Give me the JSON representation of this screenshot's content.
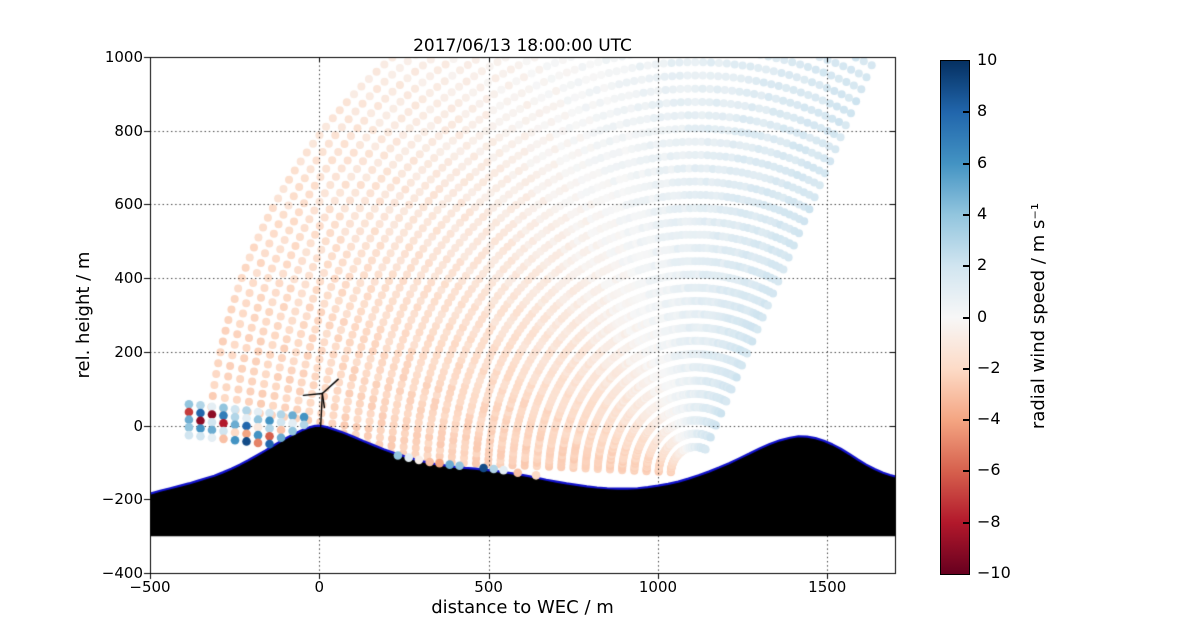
{
  "figure": {
    "title": "2017/06/13 18:00:00 UTC"
  },
  "axes": {
    "x": {
      "label": "distance to WEC / m",
      "min": -500,
      "max": 1700,
      "ticks": [
        -500,
        0,
        500,
        1000,
        1500
      ]
    },
    "y": {
      "label": "rel. height / m",
      "min": -400,
      "max": 1000,
      "ticks": [
        1000,
        800,
        600,
        400,
        200,
        0,
        -200,
        -400
      ]
    }
  },
  "colorbar": {
    "label": "radial wind speed / m s⁻¹",
    "min": -10,
    "max": 10,
    "ticks": [
      10,
      8,
      6,
      4,
      2,
      0,
      -2,
      -4,
      -6,
      -8,
      -10
    ],
    "stops": [
      [
        -10,
        "#67001f"
      ],
      [
        -8,
        "#b2182b"
      ],
      [
        -6,
        "#d6604d"
      ],
      [
        -4,
        "#f4a582"
      ],
      [
        -2,
        "#fddbc7"
      ],
      [
        0,
        "#f7f7f7"
      ],
      [
        2,
        "#d1e5f0"
      ],
      [
        4,
        "#92c5de"
      ],
      [
        6,
        "#4393c3"
      ],
      [
        8,
        "#2166ac"
      ],
      [
        10,
        "#053061"
      ]
    ]
  },
  "colors": {
    "background": "#ffffff",
    "terrain_fill": "#000000",
    "terrain_outline": "#1212cc",
    "grid": "#000000",
    "spine": "#000000"
  },
  "chart_data": {
    "type": "scatter",
    "title": "2017/06/13 18:00:00 UTC",
    "xlabel": "distance to WEC / m",
    "ylabel": "rel. height / m",
    "xlim": [
      -500,
      1700
    ],
    "ylim": [
      -400,
      1000
    ],
    "grid": "dotted",
    "legend": "colorbar-right",
    "colormap": "RdBu",
    "clim": [
      -10,
      10
    ],
    "scan_fan": {
      "comment": "lidar RHI scan fan of faint arcs; center = lidar position in data coords",
      "center": [
        1110,
        -130
      ],
      "angle_min_deg": 64,
      "angle_max_deg": 177.6,
      "angle_step_deg": 1.2,
      "range_min_m": 72,
      "range_max_m": 1460,
      "range_step_m": 36,
      "value_amplitude_ms": 2.6,
      "value_phase_deg": 20,
      "value_noise_ms": 0.6,
      "dot_radius_px": 4
    },
    "terrain": {
      "base_height_m": -300,
      "profile": [
        [
          -500,
          -185
        ],
        [
          -470,
          -177
        ],
        [
          -440,
          -170
        ],
        [
          -410,
          -163
        ],
        [
          -385,
          -157
        ],
        [
          -360,
          -150
        ],
        [
          -335,
          -143
        ],
        [
          -310,
          -136
        ],
        [
          -285,
          -127
        ],
        [
          -260,
          -117
        ],
        [
          -235,
          -106
        ],
        [
          -210,
          -94
        ],
        [
          -185,
          -81
        ],
        [
          -160,
          -68
        ],
        [
          -135,
          -54
        ],
        [
          -110,
          -40
        ],
        [
          -90,
          -30
        ],
        [
          -70,
          -21
        ],
        [
          -50,
          -12
        ],
        [
          -30,
          -5
        ],
        [
          -12,
          -1
        ],
        [
          0,
          0
        ],
        [
          12,
          -2
        ],
        [
          25,
          -5
        ],
        [
          45,
          -11
        ],
        [
          70,
          -19
        ],
        [
          100,
          -30
        ],
        [
          130,
          -42
        ],
        [
          160,
          -53
        ],
        [
          190,
          -64
        ],
        [
          220,
          -74
        ],
        [
          250,
          -83
        ],
        [
          280,
          -91
        ],
        [
          310,
          -98
        ],
        [
          340,
          -104
        ],
        [
          370,
          -108
        ],
        [
          400,
          -112
        ],
        [
          430,
          -115
        ],
        [
          460,
          -117
        ],
        [
          490,
          -120
        ],
        [
          520,
          -123
        ],
        [
          550,
          -127
        ],
        [
          580,
          -131
        ],
        [
          610,
          -136
        ],
        [
          640,
          -141
        ],
        [
          670,
          -147
        ],
        [
          700,
          -152
        ],
        [
          730,
          -157
        ],
        [
          760,
          -161
        ],
        [
          790,
          -165
        ],
        [
          820,
          -168
        ],
        [
          850,
          -170
        ],
        [
          880,
          -171
        ],
        [
          910,
          -171
        ],
        [
          940,
          -170
        ],
        [
          970,
          -167
        ],
        [
          1000,
          -163
        ],
        [
          1030,
          -158
        ],
        [
          1060,
          -152
        ],
        [
          1090,
          -144
        ],
        [
          1120,
          -135
        ],
        [
          1150,
          -125
        ],
        [
          1180,
          -114
        ],
        [
          1210,
          -102
        ],
        [
          1240,
          -89
        ],
        [
          1270,
          -76
        ],
        [
          1300,
          -62
        ],
        [
          1330,
          -50
        ],
        [
          1360,
          -40
        ],
        [
          1390,
          -33
        ],
        [
          1415,
          -29
        ],
        [
          1440,
          -30
        ],
        [
          1465,
          -34
        ],
        [
          1490,
          -41
        ],
        [
          1515,
          -51
        ],
        [
          1540,
          -63
        ],
        [
          1565,
          -77
        ],
        [
          1590,
          -92
        ],
        [
          1615,
          -106
        ],
        [
          1640,
          -118
        ],
        [
          1665,
          -128
        ],
        [
          1685,
          -134
        ],
        [
          1700,
          -138
        ]
      ]
    },
    "turbine": {
      "tower": [
        [
          4,
          -2
        ],
        [
          9,
          87
        ]
      ],
      "blades": [
        [
          [
            9,
            87
          ],
          [
            56,
            126
          ]
        ],
        [
          [
            9,
            87
          ],
          [
            -47,
            82
          ]
        ],
        [
          [
            9,
            87
          ],
          [
            15,
            49
          ]
        ]
      ]
    },
    "points": [
      [
        -385,
        58,
        4
      ],
      [
        -385,
        37,
        -7
      ],
      [
        -385,
        16,
        5
      ],
      [
        -385,
        -5,
        4
      ],
      [
        -385,
        -26,
        2
      ],
      [
        -351,
        55,
        3
      ],
      [
        -351,
        34,
        8
      ],
      [
        -351,
        13,
        -9
      ],
      [
        -351,
        -8,
        6
      ],
      [
        -351,
        -29,
        2
      ],
      [
        -317,
        51,
        1
      ],
      [
        -317,
        30,
        -9
      ],
      [
        -317,
        9,
        2
      ],
      [
        -317,
        -12,
        5
      ],
      [
        -317,
        -33,
        1
      ],
      [
        -283,
        48,
        4
      ],
      [
        -283,
        27,
        7
      ],
      [
        -283,
        6,
        -8
      ],
      [
        -283,
        -15,
        2
      ],
      [
        -283,
        -36,
        -3
      ],
      [
        -249,
        44,
        2
      ],
      [
        -249,
        23,
        3
      ],
      [
        -249,
        2,
        5
      ],
      [
        -249,
        -19,
        -2
      ],
      [
        -249,
        -40,
        6
      ],
      [
        -215,
        41,
        3
      ],
      [
        -215,
        20,
        1
      ],
      [
        -215,
        -1,
        8
      ],
      [
        -215,
        -22,
        -4
      ],
      [
        -215,
        -43,
        9
      ],
      [
        -181,
        37,
        1
      ],
      [
        -181,
        16,
        4
      ],
      [
        -181,
        -5,
        -1
      ],
      [
        -181,
        -26,
        6
      ],
      [
        -181,
        -47,
        -5
      ],
      [
        -147,
        34,
        2
      ],
      [
        -147,
        13,
        6
      ],
      [
        -147,
        -8,
        3
      ],
      [
        -147,
        -29,
        -6
      ],
      [
        -147,
        -50,
        8
      ],
      [
        -113,
        30,
        3
      ],
      [
        -113,
        9,
        2
      ],
      [
        -113,
        -12,
        -3
      ],
      [
        -113,
        -33,
        5
      ],
      [
        -79,
        27,
        5
      ],
      [
        -79,
        6,
        1
      ],
      [
        -79,
        -15,
        4
      ],
      [
        -45,
        23,
        6
      ],
      [
        -45,
        2,
        3
      ],
      [
        232,
        -81,
        4
      ],
      [
        264,
        -87,
        1
      ],
      [
        294,
        -93,
        -0.5
      ],
      [
        326,
        -99,
        -3
      ],
      [
        355,
        -102,
        -4
      ],
      [
        385,
        -106,
        5
      ],
      [
        414,
        -109,
        4
      ],
      [
        485,
        -115,
        9
      ],
      [
        515,
        -118,
        3
      ],
      [
        544,
        -121,
        1
      ],
      [
        586,
        -128,
        -3
      ],
      [
        640,
        -135,
        -2
      ]
    ],
    "point_radius_px": 4.3
  }
}
